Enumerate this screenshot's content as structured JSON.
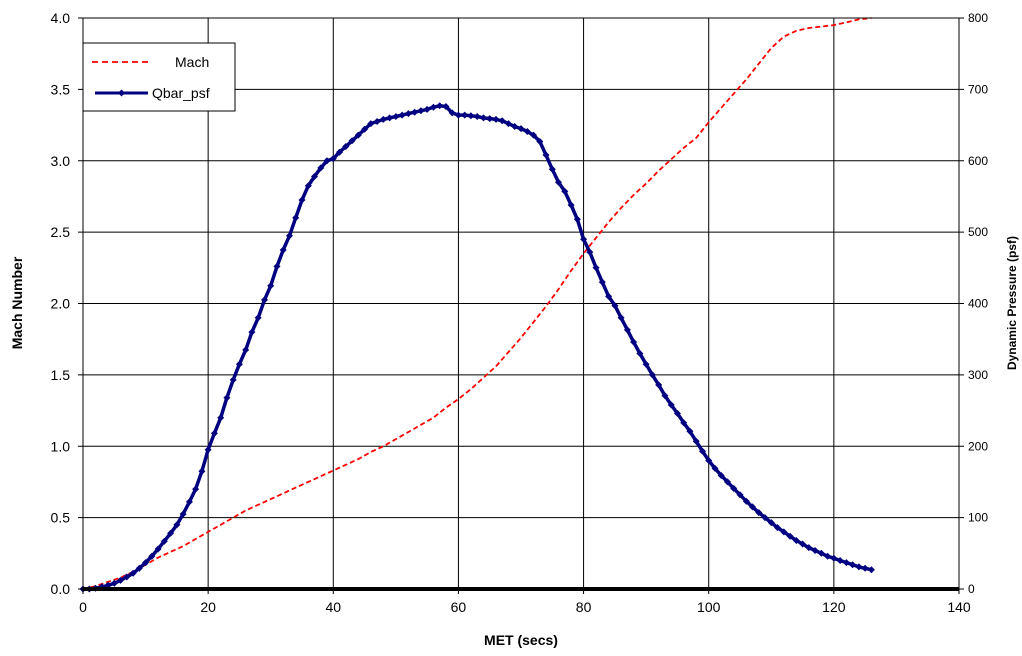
{
  "chart_data": {
    "type": "line",
    "title": "",
    "xlabel": "MET (secs)",
    "ylabel": "Mach Number",
    "y2label": "Dynamic Pressure (psf)",
    "xlim": [
      0,
      140
    ],
    "ylim": [
      0,
      4.0
    ],
    "y2lim": [
      0,
      800
    ],
    "x_ticks": [
      "0",
      "20",
      "40",
      "60",
      "80",
      "100",
      "120",
      "140"
    ],
    "y_ticks": [
      "0.0",
      "0.5",
      "1.0",
      "1.5",
      "2.0",
      "2.5",
      "3.0",
      "3.5",
      "4.0"
    ],
    "y2_ticks": [
      "0",
      "100",
      "200",
      "300",
      "400",
      "500",
      "600",
      "700",
      "800"
    ],
    "grid": true,
    "legend_position": "top-left",
    "colors": {
      "mach": "#ff0000",
      "qbar": "#000080",
      "zero_line": "#000000",
      "grid": "#000000"
    },
    "series": [
      {
        "name": "Mach",
        "axis": "left",
        "style": "dashed",
        "x": [
          0,
          2,
          4,
          6,
          8,
          10,
          12,
          14,
          16,
          18,
          20,
          22,
          24,
          26,
          28,
          30,
          32,
          34,
          36,
          38,
          40,
          42,
          44,
          46,
          48,
          50,
          52,
          54,
          56,
          58,
          60,
          62,
          64,
          66,
          68,
          70,
          72,
          74,
          76,
          78,
          80,
          82,
          84,
          86,
          88,
          90,
          92,
          94,
          96,
          98,
          100,
          102,
          104,
          106,
          108,
          110,
          112,
          114,
          116,
          118,
          120,
          122,
          124,
          126
        ],
        "y": [
          0.0,
          0.02,
          0.05,
          0.08,
          0.12,
          0.17,
          0.22,
          0.26,
          0.3,
          0.35,
          0.4,
          0.45,
          0.5,
          0.55,
          0.59,
          0.63,
          0.67,
          0.71,
          0.75,
          0.79,
          0.83,
          0.87,
          0.91,
          0.96,
          1.0,
          1.05,
          1.1,
          1.15,
          1.2,
          1.27,
          1.33,
          1.4,
          1.48,
          1.56,
          1.66,
          1.76,
          1.87,
          1.98,
          2.1,
          2.23,
          2.35,
          2.46,
          2.57,
          2.67,
          2.76,
          2.84,
          2.93,
          3.01,
          3.09,
          3.16,
          3.27,
          3.37,
          3.47,
          3.57,
          3.68,
          3.79,
          3.87,
          3.91,
          3.93,
          3.94,
          3.95,
          3.97,
          3.99,
          4.0
        ]
      },
      {
        "name": "Qbar_psf",
        "axis": "right",
        "style": "solid-markers",
        "x": [
          0,
          1,
          2,
          3,
          4,
          5,
          6,
          7,
          8,
          9,
          10,
          11,
          12,
          13,
          14,
          15,
          16,
          17,
          18,
          19,
          20,
          21,
          22,
          23,
          24,
          25,
          26,
          27,
          28,
          29,
          30,
          31,
          32,
          33,
          34,
          35,
          36,
          37,
          38,
          39,
          40,
          41,
          42,
          43,
          44,
          45,
          46,
          47,
          48,
          49,
          50,
          51,
          52,
          53,
          54,
          55,
          56,
          57,
          58,
          59,
          60,
          61,
          62,
          63,
          64,
          65,
          66,
          67,
          68,
          69,
          70,
          71,
          72,
          73,
          74,
          75,
          76,
          77,
          78,
          79,
          80,
          81,
          82,
          83,
          84,
          85,
          86,
          87,
          88,
          89,
          90,
          91,
          92,
          93,
          94,
          95,
          96,
          97,
          98,
          99,
          100,
          101,
          102,
          103,
          104,
          105,
          106,
          107,
          108,
          109,
          110,
          111,
          112,
          113,
          114,
          115,
          116,
          117,
          118,
          119,
          120,
          121,
          122,
          123,
          124,
          125,
          126
        ],
        "y": [
          0,
          0,
          1,
          3,
          5,
          8,
          12,
          17,
          22,
          29,
          37,
          46,
          56,
          67,
          78,
          90,
          105,
          122,
          140,
          165,
          195,
          218,
          240,
          268,
          293,
          315,
          335,
          360,
          380,
          405,
          425,
          452,
          475,
          495,
          520,
          545,
          565,
          578,
          590,
          600,
          603,
          612,
          620,
          628,
          636,
          644,
          652,
          655,
          658,
          660,
          662,
          664,
          666,
          668,
          670,
          672,
          675,
          677,
          676,
          667,
          664,
          664,
          663,
          662,
          660,
          659,
          658,
          656,
          652,
          648,
          645,
          641,
          636,
          627,
          608,
          588,
          570,
          557,
          538,
          518,
          490,
          472,
          450,
          430,
          410,
          397,
          380,
          363,
          346,
          330,
          315,
          300,
          286,
          271,
          258,
          246,
          233,
          221,
          207,
          193,
          180,
          169,
          159,
          150,
          141,
          132,
          123,
          115,
          107,
          100,
          93,
          86,
          80,
          74,
          68,
          63,
          58,
          54,
          50,
          46,
          43,
          40,
          37,
          34,
          31,
          29,
          27
        ]
      }
    ]
  }
}
